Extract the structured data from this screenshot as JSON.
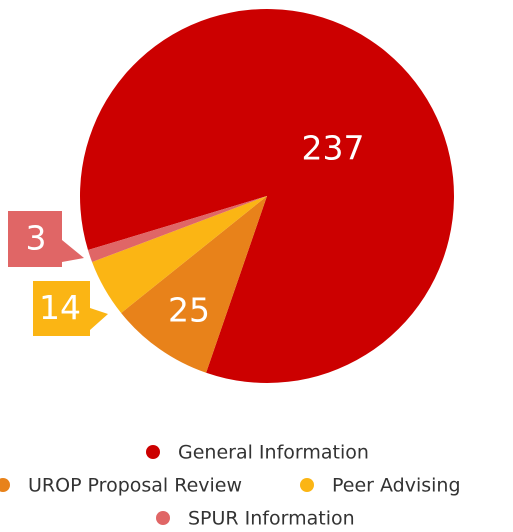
{
  "chart_data": {
    "type": "pie",
    "categories": [
      "General Information",
      "UROP Proposal Review",
      "Peer Advising",
      "SPUR Information"
    ],
    "values": [
      237,
      25,
      14,
      3
    ],
    "colors": [
      "#cc0000",
      "#e8821a",
      "#fbb514",
      "#e06666"
    ]
  }
}
